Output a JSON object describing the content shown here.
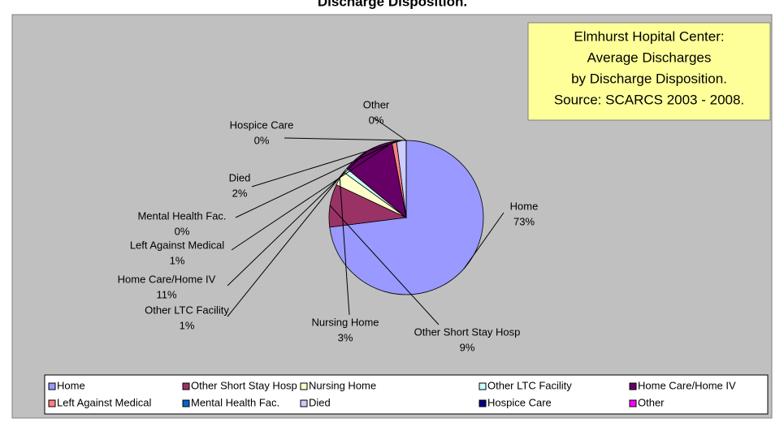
{
  "chart_data": {
    "type": "pie",
    "title": "Discharge Disposition.",
    "annotation": [
      "Elmhurst Hopital Center:",
      "Average Discharges",
      "by Discharge Disposition.",
      "Source: SCARCS 2003 - 2008."
    ],
    "categories": [
      "Home",
      "Other Short Stay Hosp",
      "Nursing Home",
      "Other LTC Facility",
      "Home Care/Home IV",
      "Left Against Medical",
      "Mental Health Fac.",
      "Died",
      "Hospice Care",
      "Other"
    ],
    "values": [
      73,
      9,
      3,
      1,
      11,
      1,
      0,
      2,
      0,
      0
    ],
    "value_labels": [
      "73%",
      "9%",
      "3%",
      "1%",
      "11%",
      "1%",
      "0%",
      "2%",
      "0%",
      "0%"
    ],
    "colors": [
      "#9999ff",
      "#993366",
      "#ffffcc",
      "#ccffff",
      "#660066",
      "#ff8080",
      "#0066cc",
      "#ccccff",
      "#000080",
      "#ff00ff"
    ],
    "legend": "bottom"
  }
}
